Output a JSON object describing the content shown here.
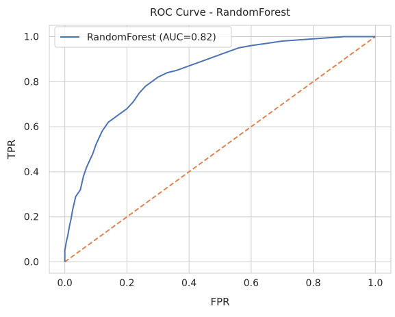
{
  "chart_data": {
    "type": "line",
    "title": "ROC Curve - RandomForest",
    "xlabel": "FPR",
    "ylabel": "TPR",
    "xlim": [
      -0.05,
      1.05
    ],
    "ylim": [
      -0.05,
      1.05
    ],
    "grid": true,
    "legend_placement": "top-left",
    "x_ticks": [
      "0.0",
      "0.2",
      "0.4",
      "0.6",
      "0.8",
      "1.0"
    ],
    "y_ticks": [
      "0.0",
      "0.2",
      "0.4",
      "0.6",
      "0.8",
      "1.0"
    ],
    "series": [
      {
        "name": "RandomForest (AUC=0.82)",
        "color": "#4c72b0",
        "style": "solid",
        "x": [
          0.0,
          0.0,
          0.005,
          0.01,
          0.015,
          0.02,
          0.025,
          0.03,
          0.035,
          0.04,
          0.045,
          0.05,
          0.055,
          0.06,
          0.065,
          0.07,
          0.08,
          0.09,
          0.1,
          0.11,
          0.12,
          0.13,
          0.14,
          0.15,
          0.16,
          0.18,
          0.2,
          0.22,
          0.24,
          0.26,
          0.28,
          0.3,
          0.33,
          0.36,
          0.4,
          0.44,
          0.48,
          0.52,
          0.56,
          0.6,
          0.65,
          0.7,
          0.75,
          0.8,
          0.85,
          0.9,
          0.95,
          1.0
        ],
        "y": [
          0.0,
          0.05,
          0.09,
          0.12,
          0.16,
          0.19,
          0.23,
          0.26,
          0.29,
          0.3,
          0.31,
          0.32,
          0.35,
          0.38,
          0.4,
          0.42,
          0.45,
          0.48,
          0.52,
          0.55,
          0.58,
          0.6,
          0.62,
          0.63,
          0.64,
          0.66,
          0.68,
          0.71,
          0.75,
          0.78,
          0.8,
          0.82,
          0.84,
          0.85,
          0.87,
          0.89,
          0.91,
          0.93,
          0.95,
          0.96,
          0.97,
          0.98,
          0.985,
          0.99,
          0.995,
          1.0,
          1.0,
          1.0
        ]
      },
      {
        "name": "",
        "color": "#dd8452",
        "style": "dashed",
        "x": [
          0.0,
          1.0
        ],
        "y": [
          0.0,
          1.0
        ]
      }
    ]
  }
}
